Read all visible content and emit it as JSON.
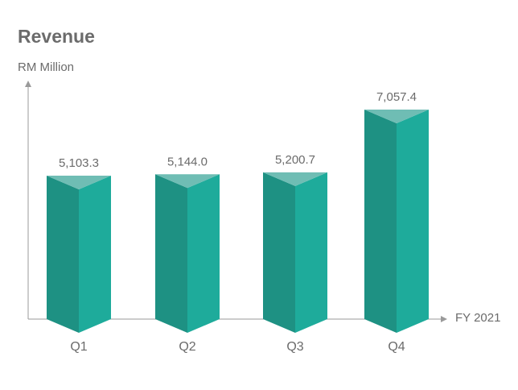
{
  "chart_data": {
    "type": "bar",
    "title": "Revenue",
    "ylabel": "RM Million",
    "xlabel": "FY 2021",
    "categories": [
      "Q1",
      "Q2",
      "Q3",
      "Q4"
    ],
    "values": [
      5103.3,
      5144.0,
      5200.7,
      7057.4
    ],
    "value_labels": [
      "5,103.3",
      "5,144.0",
      "5,200.7",
      "7,057.4"
    ],
    "grid": false,
    "legend": "none",
    "colors": {
      "bar_left": "#1e9183",
      "bar_right": "#1eab9b",
      "bar_top": "#6fbdb4",
      "axis": "#9a9a9a",
      "text": "#6b6b6b"
    }
  }
}
